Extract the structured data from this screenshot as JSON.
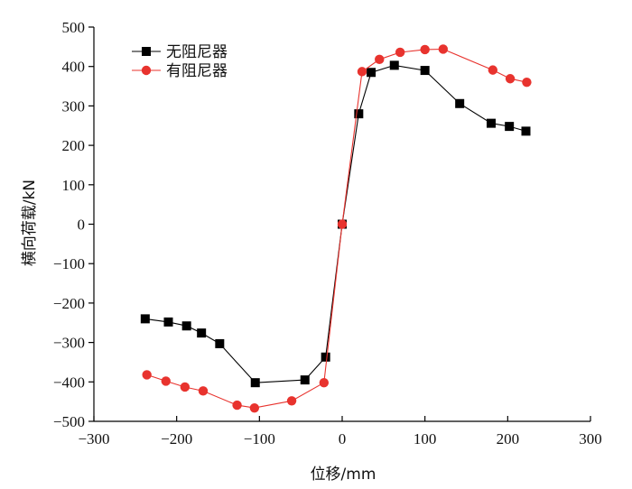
{
  "chart_data": {
    "type": "line",
    "title": "",
    "xlabel": "位移/mm",
    "ylabel": "横向荷载/kN",
    "xlim": [
      -300,
      300
    ],
    "ylim": [
      -500,
      500
    ],
    "xticks": [
      "−300",
      "−200",
      "−100",
      "0",
      "100",
      "200",
      "300"
    ],
    "yticks": [
      "−500",
      "−400",
      "−300",
      "−200",
      "−100",
      "0",
      "100",
      "200",
      "300",
      "400",
      "500"
    ],
    "grid": false,
    "legend_position": "top-left",
    "series": [
      {
        "name": "无阻尼器",
        "color": "#000000",
        "marker": "square",
        "x": [
          -238,
          -210,
          -188,
          -170,
          -148,
          -105,
          -45,
          -20,
          0,
          20,
          35,
          63,
          100,
          142,
          180,
          202,
          222
        ],
        "y": [
          -240,
          -248,
          -258,
          -276,
          -303,
          -402,
          -395,
          -337,
          0,
          280,
          385,
          403,
          390,
          306,
          256,
          248,
          236
        ]
      },
      {
        "name": "有阻尼器",
        "color": "#e8332e",
        "marker": "circle",
        "x": [
          -236,
          -213,
          -190,
          -168,
          -127,
          -106,
          -61,
          -22,
          0,
          24,
          45,
          70,
          100,
          122,
          182,
          203,
          223
        ],
        "y": [
          -382,
          -398,
          -413,
          -423,
          -459,
          -466,
          -448,
          -402,
          0,
          387,
          418,
          436,
          443,
          444,
          391,
          369,
          360
        ]
      }
    ]
  }
}
